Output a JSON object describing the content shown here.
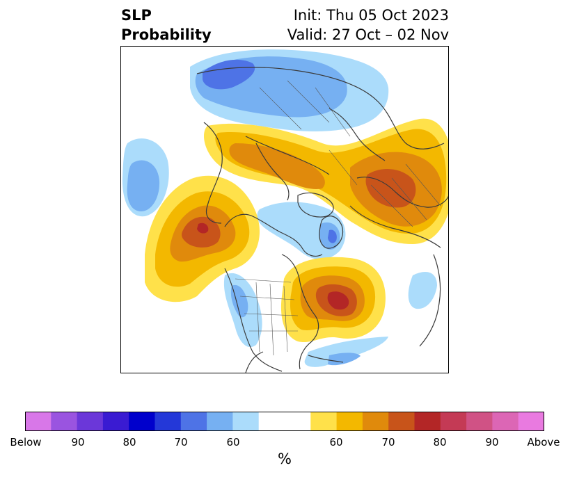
{
  "header": {
    "title_line1": "SLP",
    "title_line2": "Probability",
    "init_line": "Init: Thu 05 Oct 2023",
    "valid_line": "Valid: 27 Oct – 02 Nov"
  },
  "colorbar": {
    "unit": "%",
    "tick_labels": [
      "Below",
      "90",
      "80",
      "70",
      "60",
      "60",
      "70",
      "80",
      "90",
      "Above"
    ],
    "colors": [
      "#d877e8",
      "#9a54e0",
      "#6b37d9",
      "#3a1bd2",
      "#0000cc",
      "#2438d8",
      "#4e73e6",
      "#76b0f2",
      "#abdcfb",
      "#ffffff",
      "#ffe14a",
      "#f3b800",
      "#e08a0c",
      "#c8541a",
      "#b32626",
      "#c43a55",
      "#d05285",
      "#dc66b5",
      "#e97ae0"
    ]
  },
  "legend_colors": {
    "light_blue": "#abdcfb",
    "mid_blue": "#76b0f2",
    "blue": "#4e73e6",
    "yellow": "#ffe14a",
    "gold": "#f3b800",
    "orange": "#e08a0c",
    "rust": "#c8541a",
    "red": "#b32626",
    "coast": "#3a3a3a"
  }
}
